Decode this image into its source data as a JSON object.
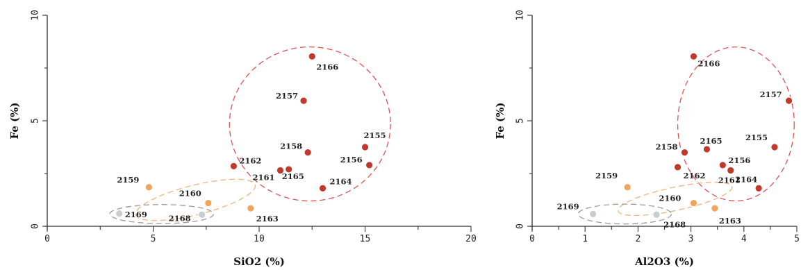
{
  "colors": {
    "red": "#c0392b",
    "orange": "#f0a45c",
    "grey": "#c9ccd0",
    "ellipse_red": "#e05050",
    "ellipse_orange": "#f2b27c",
    "ellipse_grey": "#9a9a9a"
  },
  "chart_data": [
    {
      "type": "scatter",
      "xlabel": "SiO2 (%)",
      "ylabel": "Fe (%)",
      "xlim": [
        0,
        20
      ],
      "ylim": [
        0,
        10
      ],
      "xticks": [
        "0",
        "5",
        "10",
        "15",
        "20"
      ],
      "yticks": [
        "0",
        "5",
        "10"
      ],
      "grid": false,
      "points": [
        {
          "label": "2155",
          "x": 15.0,
          "y": 3.75,
          "group": "red"
        },
        {
          "label": "2156",
          "x": 15.2,
          "y": 2.9,
          "group": "red"
        },
        {
          "label": "2157",
          "x": 12.1,
          "y": 5.95,
          "group": "red"
        },
        {
          "label": "2158",
          "x": 12.3,
          "y": 3.5,
          "group": "red"
        },
        {
          "label": "2161",
          "x": 11.0,
          "y": 2.65,
          "group": "red"
        },
        {
          "label": "2162",
          "x": 8.8,
          "y": 2.85,
          "group": "red"
        },
        {
          "label": "2164",
          "x": 13.0,
          "y": 1.8,
          "group": "red"
        },
        {
          "label": "2165",
          "x": 11.4,
          "y": 2.7,
          "group": "red"
        },
        {
          "label": "2166",
          "x": 12.5,
          "y": 8.05,
          "group": "red"
        },
        {
          "label": "2159",
          "x": 4.8,
          "y": 1.85,
          "group": "orange"
        },
        {
          "label": "2160",
          "x": 7.6,
          "y": 1.1,
          "group": "orange"
        },
        {
          "label": "2163",
          "x": 9.6,
          "y": 0.85,
          "group": "orange"
        },
        {
          "label": "2168",
          "x": 7.3,
          "y": 0.55,
          "group": "grey"
        },
        {
          "label": "2169",
          "x": 3.4,
          "y": 0.6,
          "group": "grey"
        }
      ],
      "ellipses": [
        {
          "group": "red",
          "cx": 12.4,
          "cy": 4.85,
          "rx": 3.8,
          "ry": 3.65
        },
        {
          "group": "orange",
          "cx": 7.0,
          "cy": 1.25,
          "rx": 2.9,
          "ry": 0.7,
          "angle": 14
        },
        {
          "group": "grey",
          "cx": 5.4,
          "cy": 0.58,
          "rx": 2.45,
          "ry": 0.45
        }
      ]
    },
    {
      "type": "scatter",
      "xlabel": "Al2O3 (%)",
      "ylabel": "Fe (%)",
      "xlim": [
        0,
        5
      ],
      "ylim": [
        0,
        10
      ],
      "xticks": [
        "0",
        "1",
        "2",
        "3",
        "4",
        "5"
      ],
      "yticks": [
        "0",
        "5",
        "10"
      ],
      "grid": false,
      "points": [
        {
          "label": "2155",
          "x": 4.58,
          "y": 3.75,
          "group": "red"
        },
        {
          "label": "2156",
          "x": 3.6,
          "y": 2.9,
          "group": "red"
        },
        {
          "label": "2157",
          "x": 4.85,
          "y": 5.95,
          "group": "red"
        },
        {
          "label": "2158",
          "x": 2.88,
          "y": 3.5,
          "group": "red"
        },
        {
          "label": "2161",
          "x": 3.75,
          "y": 2.65,
          "group": "red"
        },
        {
          "label": "2162",
          "x": 2.75,
          "y": 2.8,
          "group": "red"
        },
        {
          "label": "2164",
          "x": 4.28,
          "y": 1.8,
          "group": "red"
        },
        {
          "label": "2165",
          "x": 3.3,
          "y": 3.65,
          "group": "red"
        },
        {
          "label": "2166",
          "x": 3.05,
          "y": 8.05,
          "group": "red"
        },
        {
          "label": "2159",
          "x": 1.8,
          "y": 1.85,
          "group": "orange"
        },
        {
          "label": "2160",
          "x": 3.05,
          "y": 1.1,
          "group": "orange"
        },
        {
          "label": "2163",
          "x": 3.45,
          "y": 0.85,
          "group": "orange"
        },
        {
          "label": "2168",
          "x": 2.35,
          "y": 0.55,
          "group": "grey"
        },
        {
          "label": "2169",
          "x": 1.15,
          "y": 0.58,
          "group": "grey"
        }
      ],
      "ellipses": [
        {
          "group": "red",
          "cx": 3.85,
          "cy": 4.85,
          "rx": 1.1,
          "ry": 3.65
        },
        {
          "group": "orange",
          "cx": 2.7,
          "cy": 1.3,
          "rx": 1.1,
          "ry": 0.55,
          "angle": 12
        },
        {
          "group": "grey",
          "cx": 1.75,
          "cy": 0.58,
          "rx": 0.88,
          "ry": 0.47
        }
      ]
    }
  ]
}
